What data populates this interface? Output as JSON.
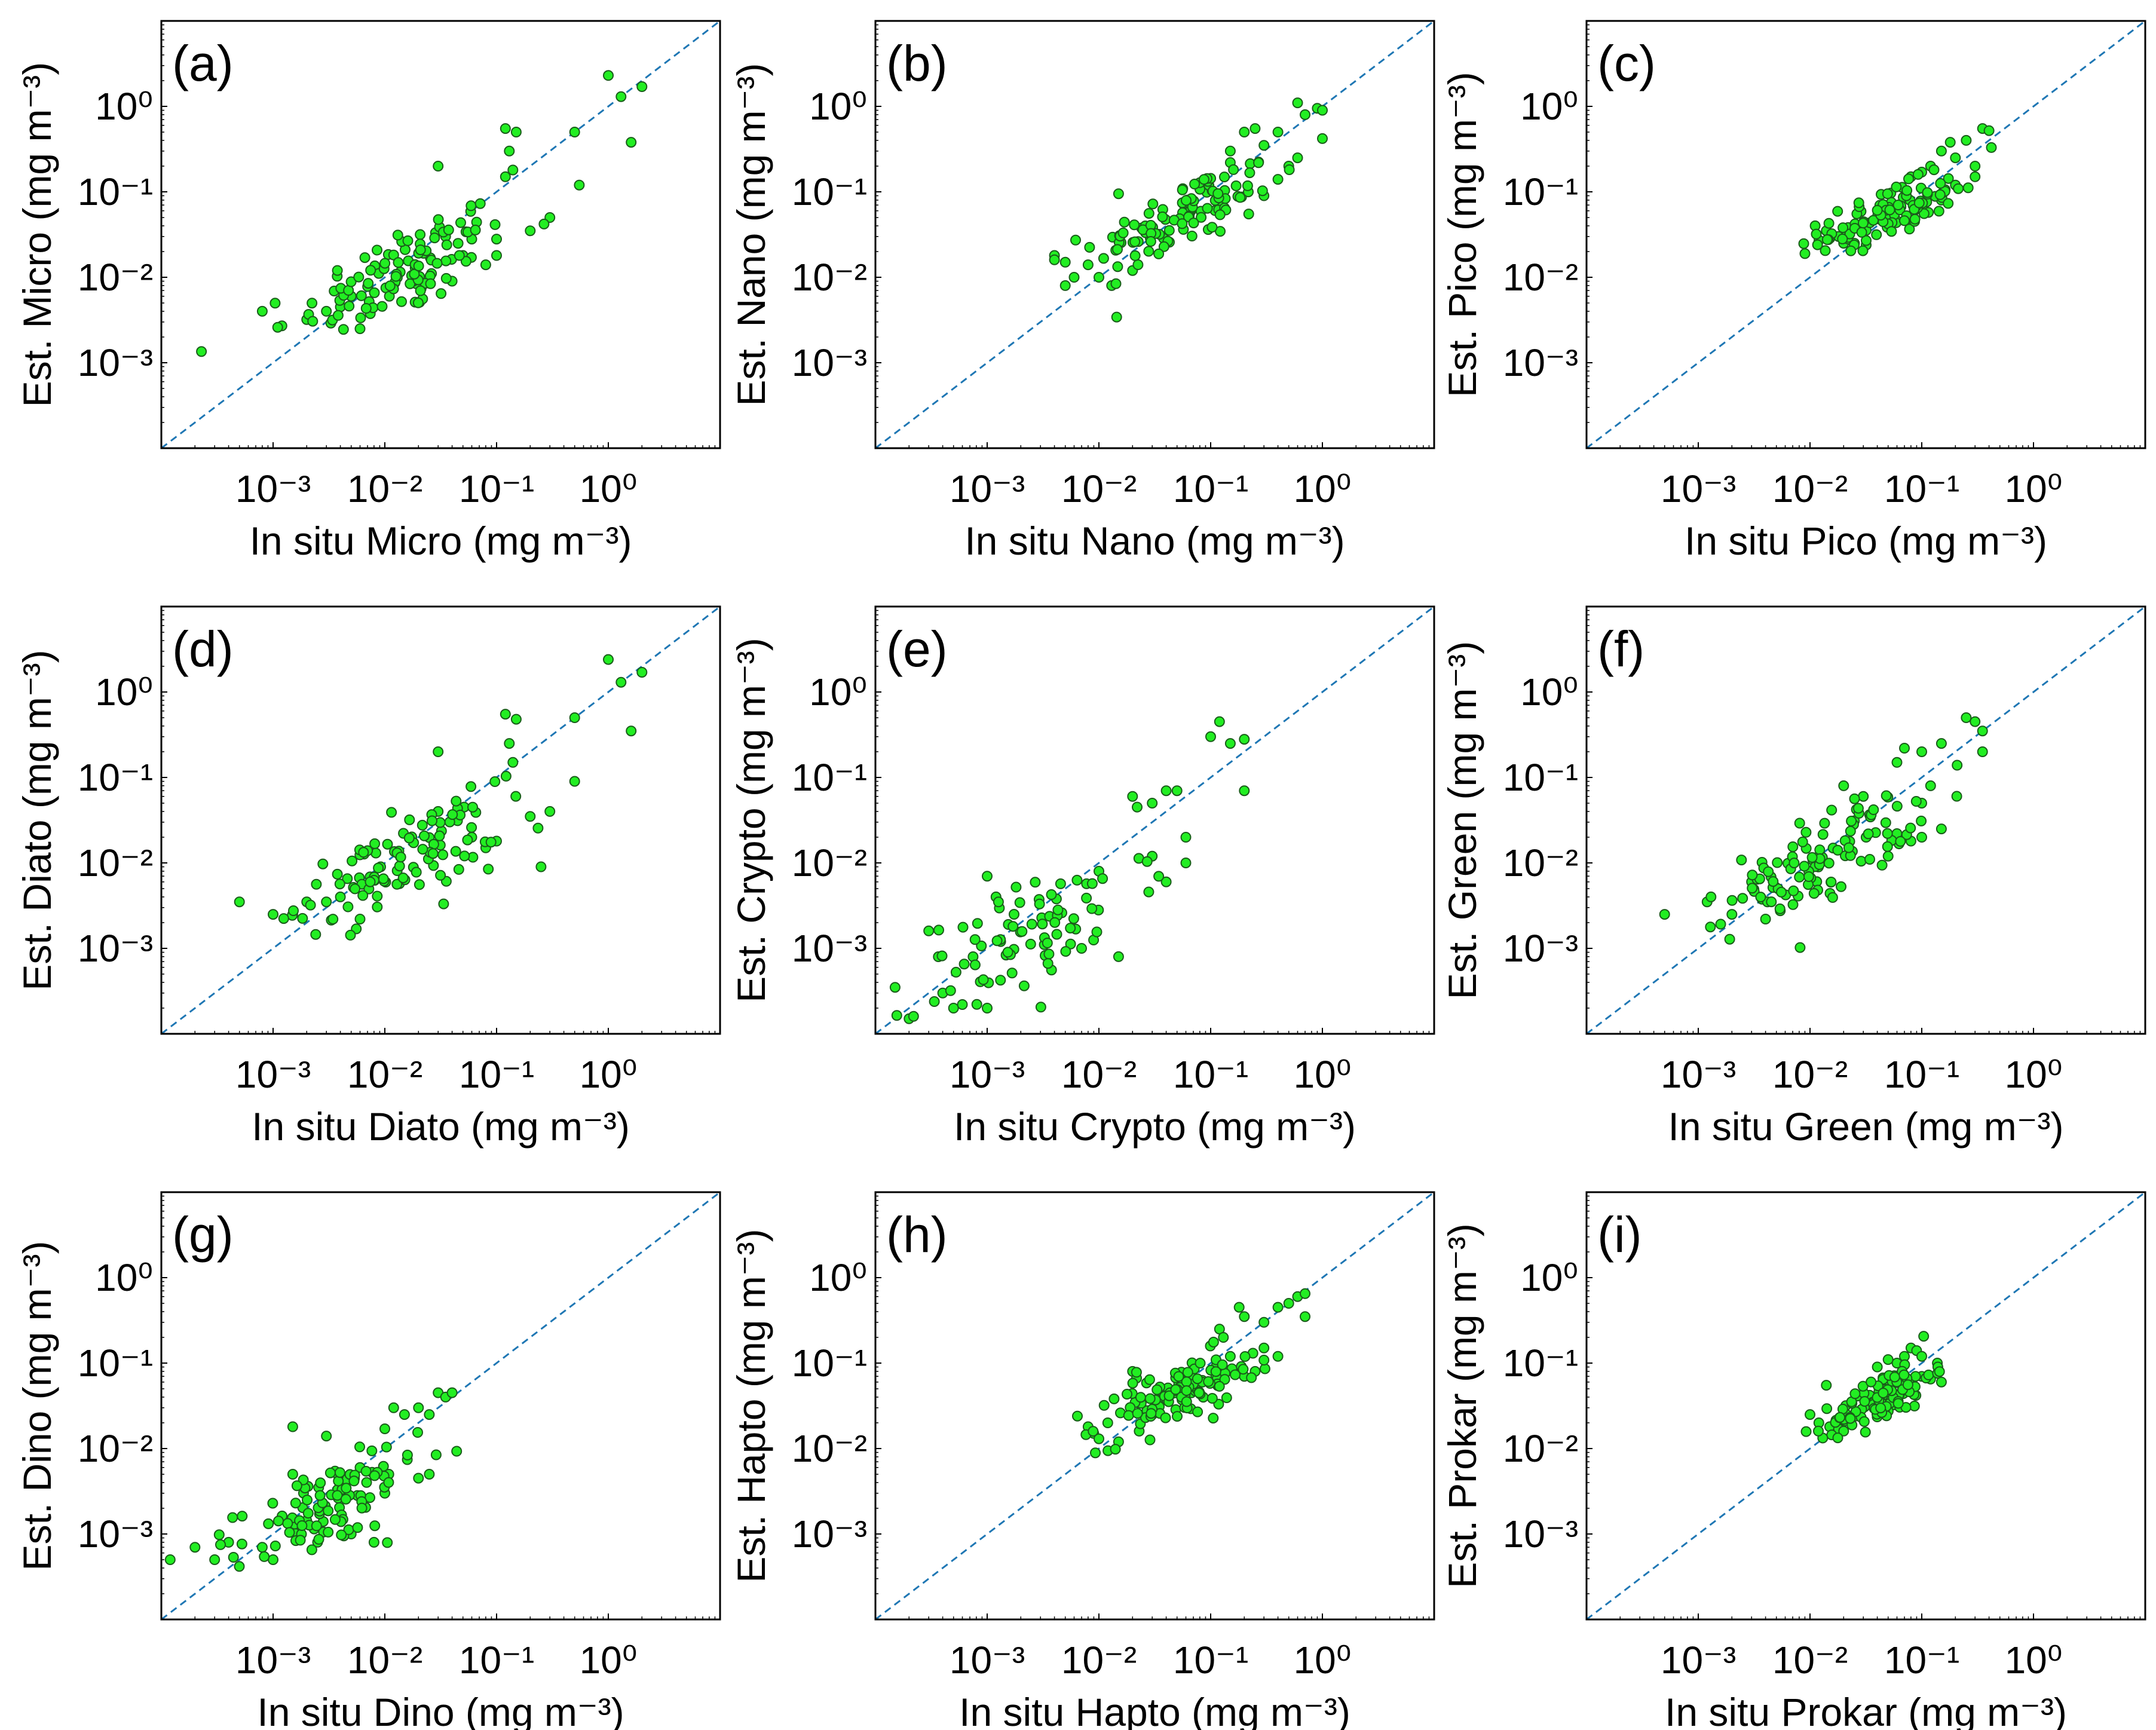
{
  "figure": {
    "marker_fill": "#22ee22",
    "marker_edge": "#1a5c1a",
    "line_color": "#1f77b4",
    "frame_color": "#000000"
  },
  "chart_data": [
    {
      "type": "scatter",
      "panel": "(a)",
      "scale": "log",
      "xlabel": "In situ Micro (mg m⁻³)",
      "ylabel": "Est. Micro (mg m⁻³)",
      "xlim": [
        0.0001,
        10
      ],
      "ylim": [
        0.0001,
        10
      ],
      "x_ticks": [
        "10⁻³",
        "10⁻²",
        "10⁻¹",
        "10⁰"
      ],
      "y_ticks": [
        "10⁻³",
        "10⁻²",
        "10⁻¹",
        "10⁰"
      ],
      "reference_line": "1:1",
      "cluster": {
        "n": 110,
        "x_center": 0.015,
        "y_center": 0.012,
        "x_spread": 0.45,
        "y_spread": 0.38
      },
      "points": [
        [
          0.0008,
          0.004
        ],
        [
          0.0012,
          0.0027
        ],
        [
          0.0011,
          0.0026
        ],
        [
          0.002,
          0.0032
        ],
        [
          0.003,
          0.004
        ],
        [
          0.004,
          0.0045
        ],
        [
          0.005,
          0.006
        ],
        [
          0.006,
          0.0025
        ],
        [
          0.03,
          0.2
        ],
        [
          0.12,
          0.55
        ],
        [
          0.15,
          0.5
        ],
        [
          0.13,
          0.3
        ],
        [
          0.14,
          0.18
        ],
        [
          0.12,
          0.15
        ],
        [
          0.5,
          0.5
        ],
        [
          0.55,
          0.12
        ],
        [
          1.0,
          2.3
        ],
        [
          1.3,
          1.3
        ],
        [
          1.6,
          0.38
        ],
        [
          2.0,
          1.7
        ],
        [
          0.3,
          0.05
        ],
        [
          0.2,
          0.035
        ],
        [
          0.1,
          0.028
        ],
        [
          0.1,
          0.018
        ],
        [
          0.05,
          0.018
        ],
        [
          0.035,
          0.03
        ],
        [
          0.06,
          0.028
        ],
        [
          0.08,
          0.014
        ],
        [
          0.04,
          0.009
        ]
      ]
    },
    {
      "type": "scatter",
      "panel": "(b)",
      "scale": "log",
      "xlabel": "In situ Nano (mg m⁻³)",
      "ylabel": "Est. Nano (mg m⁻³)",
      "xlim": [
        0.0001,
        10
      ],
      "ylim": [
        0.0001,
        10
      ],
      "x_ticks": [
        "10⁻³",
        "10⁻²",
        "10⁻¹",
        "10⁰"
      ],
      "y_ticks": [
        "10⁻³",
        "10⁻²",
        "10⁻¹",
        "10⁰"
      ],
      "reference_line": "1:1",
      "cluster": {
        "n": 110,
        "x_center": 0.06,
        "y_center": 0.055,
        "x_spread": 0.4,
        "y_spread": 0.3
      },
      "points": [
        [
          0.004,
          0.018
        ],
        [
          0.004,
          0.016
        ],
        [
          0.005,
          0.015
        ],
        [
          0.005,
          0.008
        ],
        [
          0.006,
          0.01
        ],
        [
          0.008,
          0.014
        ],
        [
          0.01,
          0.01
        ],
        [
          0.013,
          0.008
        ],
        [
          0.015,
          0.095
        ],
        [
          0.02,
          0.012
        ],
        [
          0.2,
          0.5
        ],
        [
          0.25,
          0.55
        ],
        [
          0.3,
          0.35
        ],
        [
          0.4,
          0.5
        ],
        [
          0.6,
          1.1
        ],
        [
          0.7,
          0.8
        ],
        [
          0.9,
          0.95
        ],
        [
          1.0,
          0.9
        ],
        [
          1.0,
          0.42
        ],
        [
          0.5,
          0.2
        ],
        [
          0.4,
          0.14
        ],
        [
          0.3,
          0.09
        ],
        [
          0.6,
          0.25
        ],
        [
          0.15,
          0.22
        ],
        [
          0.15,
          0.3
        ]
      ]
    },
    {
      "type": "scatter",
      "panel": "(c)",
      "scale": "log",
      "xlabel": "In situ Pico (mg m⁻³)",
      "ylabel": "Est. Pico (mg m⁻³)",
      "xlim": [
        0.0001,
        10
      ],
      "ylim": [
        0.0001,
        10
      ],
      "x_ticks": [
        "10⁻³",
        "10⁻²",
        "10⁻¹",
        "10⁰"
      ],
      "y_ticks": [
        "10⁻³",
        "10⁻²",
        "10⁻¹",
        "10⁰"
      ],
      "reference_line": "1:1",
      "cluster": {
        "n": 120,
        "x_center": 0.05,
        "y_center": 0.055,
        "x_spread": 0.3,
        "y_spread": 0.2
      },
      "points": [
        [
          0.014,
          0.035
        ],
        [
          0.018,
          0.03
        ],
        [
          0.02,
          0.025
        ],
        [
          0.022,
          0.028
        ],
        [
          0.025,
          0.025
        ],
        [
          0.15,
          0.3
        ],
        [
          0.18,
          0.38
        ],
        [
          0.2,
          0.25
        ],
        [
          0.25,
          0.4
        ],
        [
          0.3,
          0.2
        ],
        [
          0.35,
          0.55
        ],
        [
          0.4,
          0.52
        ],
        [
          0.42,
          0.33
        ],
        [
          0.3,
          0.15
        ],
        [
          0.2,
          0.12
        ],
        [
          0.15,
          0.08
        ],
        [
          0.1,
          0.17
        ],
        [
          0.12,
          0.2
        ],
        [
          0.08,
          0.15
        ]
      ]
    },
    {
      "type": "scatter",
      "panel": "(d)",
      "scale": "log",
      "xlabel": "In situ Diato (mg m⁻³)",
      "ylabel": "Est. Diato (mg m⁻³)",
      "xlim": [
        0.0001,
        10
      ],
      "ylim": [
        0.0001,
        10
      ],
      "x_ticks": [
        "10⁻³",
        "10⁻²",
        "10⁻¹",
        "10⁰"
      ],
      "y_ticks": [
        "10⁻³",
        "10⁻²",
        "10⁻¹",
        "10⁰"
      ],
      "reference_line": "1:1",
      "cluster": {
        "n": 105,
        "x_center": 0.013,
        "y_center": 0.01,
        "x_spread": 0.45,
        "y_spread": 0.35
      },
      "points": [
        [
          0.0005,
          0.0035
        ],
        [
          0.001,
          0.0025
        ],
        [
          0.0015,
          0.0025
        ],
        [
          0.002,
          0.0035
        ],
        [
          0.003,
          0.0035
        ],
        [
          0.004,
          0.004
        ],
        [
          0.006,
          0.0022
        ],
        [
          0.03,
          0.2
        ],
        [
          0.12,
          0.55
        ],
        [
          0.15,
          0.48
        ],
        [
          0.13,
          0.25
        ],
        [
          0.14,
          0.15
        ],
        [
          0.5,
          0.5
        ],
        [
          0.5,
          0.09
        ],
        [
          1.0,
          2.4
        ],
        [
          1.3,
          1.3
        ],
        [
          1.6,
          0.35
        ],
        [
          2.0,
          1.7
        ],
        [
          0.3,
          0.04
        ],
        [
          0.2,
          0.035
        ],
        [
          0.1,
          0.018
        ],
        [
          0.06,
          0.02
        ],
        [
          0.08,
          0.015
        ],
        [
          0.03,
          0.04
        ],
        [
          0.25,
          0.009
        ]
      ]
    },
    {
      "type": "scatter",
      "panel": "(e)",
      "scale": "log",
      "xlabel": "In situ Crypto (mg m⁻³)",
      "ylabel": "Est. Crypto (mg m⁻³)",
      "xlim": [
        0.0001,
        10
      ],
      "ylim": [
        0.0001,
        10
      ],
      "x_ticks": [
        "10⁻³",
        "10⁻²",
        "10⁻¹",
        "10⁰"
      ],
      "y_ticks": [
        "10⁻³",
        "10⁻²",
        "10⁻¹",
        "10⁰"
      ],
      "reference_line": "1:1",
      "cluster": {
        "n": 80,
        "x_center": 0.003,
        "y_center": 0.0015,
        "x_spread": 0.55,
        "y_spread": 0.45
      },
      "points": [
        [
          0.00015,
          0.00035
        ],
        [
          0.0002,
          0.00015
        ],
        [
          0.0003,
          0.0016
        ],
        [
          0.0004,
          0.0003
        ],
        [
          0.0005,
          0.0002
        ],
        [
          0.0006,
          0.00022
        ],
        [
          0.0008,
          0.0001
        ],
        [
          0.001,
          0.0002
        ],
        [
          0.0015,
          0.0001
        ],
        [
          0.001,
          0.007
        ],
        [
          0.0012,
          0.004
        ],
        [
          0.02,
          0.06
        ],
        [
          0.022,
          0.045
        ],
        [
          0.03,
          0.05
        ],
        [
          0.04,
          0.07
        ],
        [
          0.05,
          0.07
        ],
        [
          0.03,
          0.012
        ],
        [
          0.04,
          0.006
        ],
        [
          0.06,
          0.02
        ],
        [
          0.06,
          0.01
        ],
        [
          0.1,
          0.3
        ],
        [
          0.12,
          0.45
        ],
        [
          0.15,
          0.25
        ],
        [
          0.2,
          0.28
        ],
        [
          0.2,
          0.07
        ],
        [
          0.01,
          0.008
        ],
        [
          0.015,
          0.0008
        ],
        [
          0.007,
          0.001
        ]
      ]
    },
    {
      "type": "scatter",
      "panel": "(f)",
      "scale": "log",
      "xlabel": "In situ Green (mg m⁻³)",
      "ylabel": "Est. Green (mg m⁻³)",
      "xlim": [
        0.0001,
        10
      ],
      "ylim": [
        0.0001,
        10
      ],
      "x_ticks": [
        "10⁻³",
        "10⁻²",
        "10⁻¹",
        "10⁰"
      ],
      "y_ticks": [
        "10⁻³",
        "10⁻²",
        "10⁻¹",
        "10⁰"
      ],
      "reference_line": "1:1",
      "cluster": {
        "n": 110,
        "x_center": 0.013,
        "y_center": 0.012,
        "x_spread": 0.4,
        "y_spread": 0.35
      },
      "points": [
        [
          0.0005,
          0.0025
        ],
        [
          0.0012,
          0.0035
        ],
        [
          0.0013,
          0.004
        ],
        [
          0.002,
          0.0025
        ],
        [
          0.003,
          0.006
        ],
        [
          0.004,
          0.0022
        ],
        [
          0.1,
          0.2
        ],
        [
          0.06,
          0.15
        ],
        [
          0.07,
          0.22
        ],
        [
          0.15,
          0.25
        ],
        [
          0.25,
          0.5
        ],
        [
          0.3,
          0.45
        ],
        [
          0.35,
          0.35
        ],
        [
          0.35,
          0.2
        ],
        [
          0.1,
          0.05
        ],
        [
          0.12,
          0.08
        ],
        [
          0.15,
          0.025
        ],
        [
          0.1,
          0.02
        ],
        [
          0.08,
          0.018
        ],
        [
          0.06,
          0.022
        ],
        [
          0.05,
          0.012
        ],
        [
          0.03,
          0.06
        ],
        [
          0.02,
          0.08
        ]
      ]
    },
    {
      "type": "scatter",
      "panel": "(g)",
      "scale": "log",
      "xlabel": "In situ Dino (mg m⁻³)",
      "ylabel": "Est. Dino (mg m⁻³)",
      "xlim": [
        0.0001,
        10
      ],
      "ylim": [
        0.0001,
        10
      ],
      "x_ticks": [
        "10⁻³",
        "10⁻²",
        "10⁻¹",
        "10⁰"
      ],
      "y_ticks": [
        "10⁻³",
        "10⁻²",
        "10⁻¹",
        "10⁰"
      ],
      "reference_line": "1:1",
      "cluster": {
        "n": 105,
        "x_center": 0.003,
        "y_center": 0.002,
        "x_spread": 0.4,
        "y_spread": 0.35
      },
      "points": [
        [
          0.00012,
          0.0005
        ],
        [
          0.0002,
          0.0007
        ],
        [
          0.0003,
          0.0005
        ],
        [
          0.0004,
          0.0008
        ],
        [
          0.0008,
          0.0007
        ],
        [
          0.001,
          0.0005
        ],
        [
          0.0015,
          0.018
        ],
        [
          0.003,
          0.014
        ],
        [
          0.0015,
          0.005
        ],
        [
          0.01,
          0.017
        ],
        [
          0.012,
          0.03
        ],
        [
          0.015,
          0.025
        ],
        [
          0.02,
          0.03
        ],
        [
          0.025,
          0.025
        ],
        [
          0.03,
          0.045
        ],
        [
          0.035,
          0.04
        ],
        [
          0.04,
          0.045
        ],
        [
          0.025,
          0.005
        ],
        [
          0.02,
          0.0045
        ],
        [
          0.01,
          0.003
        ],
        [
          0.008,
          0.0008
        ],
        [
          0.006,
          0.006
        ],
        [
          0.005,
          0.001
        ]
      ]
    },
    {
      "type": "scatter",
      "panel": "(h)",
      "scale": "log",
      "xlabel": "In situ Hapto (mg m⁻³)",
      "ylabel": "Est. Hapto (mg m⁻³)",
      "xlim": [
        0.0001,
        10
      ],
      "ylim": [
        0.0001,
        10
      ],
      "x_ticks": [
        "10⁻³",
        "10⁻²",
        "10⁻¹",
        "10⁰"
      ],
      "y_ticks": [
        "10⁻³",
        "10⁻²",
        "10⁻¹",
        "10⁰"
      ],
      "reference_line": "1:1",
      "cluster": {
        "n": 120,
        "x_center": 0.05,
        "y_center": 0.045,
        "x_spread": 0.35,
        "y_spread": 0.25
      },
      "points": [
        [
          0.008,
          0.018
        ],
        [
          0.009,
          0.015
        ],
        [
          0.01,
          0.013
        ],
        [
          0.012,
          0.02
        ],
        [
          0.015,
          0.012
        ],
        [
          0.02,
          0.08
        ],
        [
          0.12,
          0.25
        ],
        [
          0.13,
          0.2
        ],
        [
          0.18,
          0.45
        ],
        [
          0.2,
          0.35
        ],
        [
          0.3,
          0.3
        ],
        [
          0.4,
          0.45
        ],
        [
          0.5,
          0.5
        ],
        [
          0.6,
          0.6
        ],
        [
          0.7,
          0.65
        ],
        [
          0.7,
          0.35
        ],
        [
          0.4,
          0.12
        ],
        [
          0.3,
          0.15
        ],
        [
          0.25,
          0.08
        ],
        [
          0.2,
          0.07
        ],
        [
          0.15,
          0.12
        ]
      ]
    },
    {
      "type": "scatter",
      "panel": "(i)",
      "scale": "log",
      "xlabel": "In situ Prokar (mg m⁻³)",
      "ylabel": "Est. Prokar (mg m⁻³)",
      "xlim": [
        0.0001,
        10
      ],
      "ylim": [
        0.0001,
        10
      ],
      "x_ticks": [
        "10⁻³",
        "10⁻²",
        "10⁻¹",
        "10⁰"
      ],
      "y_ticks": [
        "10⁻³",
        "10⁻²",
        "10⁻¹",
        "10⁰"
      ],
      "reference_line": "1:1",
      "cluster": {
        "n": 120,
        "x_center": 0.045,
        "y_center": 0.04,
        "x_spread": 0.22,
        "y_spread": 0.2
      },
      "points": [
        [
          0.01,
          0.025
        ],
        [
          0.012,
          0.02
        ],
        [
          0.014,
          0.055
        ],
        [
          0.015,
          0.018
        ],
        [
          0.018,
          0.017
        ],
        [
          0.02,
          0.016
        ],
        [
          0.06,
          0.1
        ],
        [
          0.07,
          0.12
        ],
        [
          0.08,
          0.15
        ],
        [
          0.09,
          0.14
        ],
        [
          0.1,
          0.12
        ],
        [
          0.1,
          0.07
        ],
        [
          0.12,
          0.065
        ],
        [
          0.15,
          0.06
        ],
        [
          0.05,
          0.11
        ],
        [
          0.04,
          0.09
        ]
      ]
    }
  ]
}
